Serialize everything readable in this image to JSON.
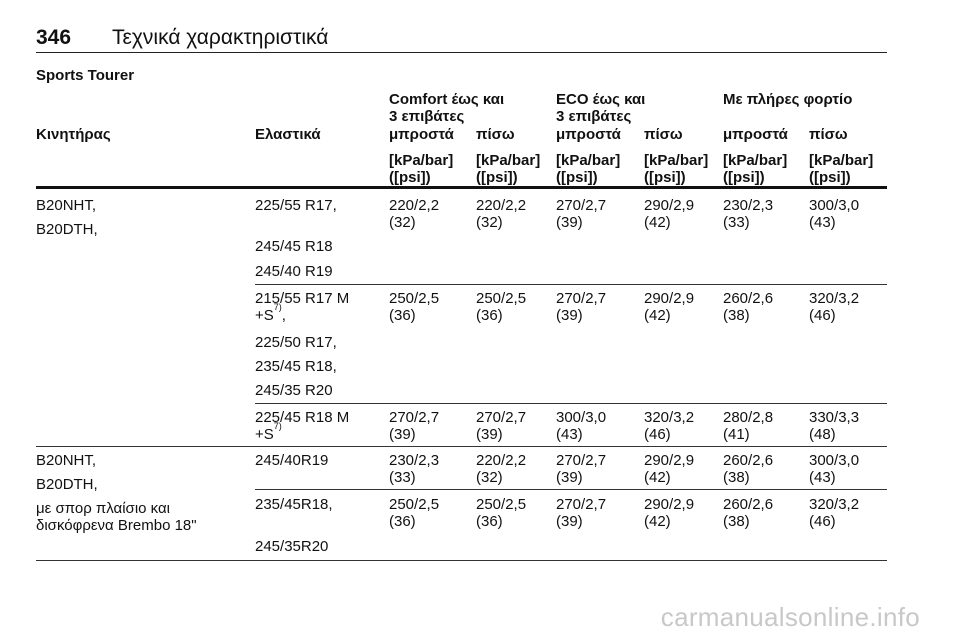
{
  "header": {
    "page_number": "346",
    "chapter_title": "Τεχνικά χαρακτηριστικά"
  },
  "section_title": "Sports Tourer",
  "groups": {
    "comfort": {
      "line1": "Comfort έως και",
      "line2": "3 επιβάτες"
    },
    "eco": {
      "line1": "ECO έως και",
      "line2": "3 επιβάτες"
    },
    "full": "Με πλήρες φορτίο"
  },
  "columns": {
    "engine": "Κινητήρας",
    "tyres": "Ελαστικά",
    "front": "μπροστά",
    "rear": "πίσω",
    "unit_line1": "[kPa/bar]",
    "unit_line2": "([psi])"
  },
  "rows": [
    {
      "engines": [
        "B20NHT,",
        "B20DTH,"
      ],
      "tyres": [
        "225/55 R17,",
        "245/45 R18",
        "245/40 R19"
      ],
      "values": [
        [
          "220/2,2",
          "(32)"
        ],
        [
          "220/2,2",
          "(32)"
        ],
        [
          "270/2,7",
          "(39)"
        ],
        [
          "290/2,9",
          "(42)"
        ],
        [
          "230/2,3",
          "(33)"
        ],
        [
          "300/3,0",
          "(43)"
        ]
      ]
    },
    {
      "tyres_first_line": "215/55 R17 M",
      "tyres_second_line": "+S",
      "footnote": "7)",
      "tyres_tail": ",",
      "tyres": [
        "225/50 R17,",
        "235/45 R18,",
        "245/35 R20"
      ],
      "values": [
        [
          "250/2,5",
          "(36)"
        ],
        [
          "250/2,5",
          "(36)"
        ],
        [
          "270/2,7",
          "(39)"
        ],
        [
          "290/2,9",
          "(42)"
        ],
        [
          "260/2,6",
          "(38)"
        ],
        [
          "320/3,2",
          "(46)"
        ]
      ]
    },
    {
      "tyres_first_line": "225/45 R18 M",
      "tyres_second_line": "+S",
      "footnote": "7)",
      "values": [
        [
          "270/2,7",
          "(39)"
        ],
        [
          "270/2,7",
          "(39)"
        ],
        [
          "300/3,0",
          "(43)"
        ],
        [
          "320/3,2",
          "(46)"
        ],
        [
          "280/2,8",
          "(41)"
        ],
        [
          "330/3,3",
          "(48)"
        ]
      ]
    },
    {
      "engines": [
        "B20NHT,",
        "B20DTH,",
        "με σπορ πλαίσιο και",
        "δισκόφρενα Brembo 18\""
      ],
      "tyres": [
        "245/40R19"
      ],
      "values": [
        [
          "230/2,3",
          "(33)"
        ],
        [
          "220/2,2",
          "(32)"
        ],
        [
          "270/2,7",
          "(39)"
        ],
        [
          "290/2,9",
          "(42)"
        ],
        [
          "260/2,6",
          "(38)"
        ],
        [
          "300/3,0",
          "(43)"
        ]
      ]
    },
    {
      "tyres": [
        "235/45R18,",
        "245/35R20"
      ],
      "values": [
        [
          "250/2,5",
          "(36)"
        ],
        [
          "250/2,5",
          "(36)"
        ],
        [
          "270/2,7",
          "(39)"
        ],
        [
          "290/2,9",
          "(42)"
        ],
        [
          "260/2,6",
          "(38)"
        ],
        [
          "320/3,2",
          "(46)"
        ]
      ]
    }
  ],
  "watermark": "carmanualsonline.info"
}
